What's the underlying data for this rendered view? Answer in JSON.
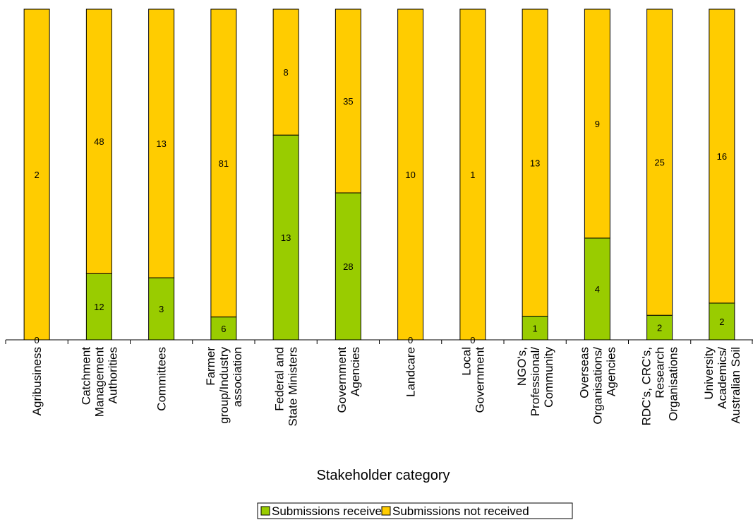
{
  "chart_data": {
    "type": "bar",
    "stacked": "percent",
    "categories": [
      [
        "Agribusiness"
      ],
      [
        "Catchment",
        "Management",
        "Authorities"
      ],
      [
        "Committees"
      ],
      [
        "Farmer",
        "group/Industry",
        "association"
      ],
      [
        "Federal and",
        "State Ministers"
      ],
      [
        "Government",
        "Agencies"
      ],
      [
        "Landcare"
      ],
      [
        "Local",
        "Government"
      ],
      [
        "NGO's,",
        "Professional/",
        "Community"
      ],
      [
        "Overseas",
        "Organisations/",
        "Agencies"
      ],
      [
        "RDC's, CRC's,",
        "Research",
        "Organisations"
      ],
      [
        "University",
        "Academics/",
        "Australian Soil"
      ]
    ],
    "series": [
      {
        "name": "Submissions received",
        "color": "#99cc00",
        "values": [
          0,
          12,
          3,
          6,
          13,
          28,
          0,
          0,
          1,
          4,
          2,
          2
        ]
      },
      {
        "name": "Submissions not received",
        "color": "#ffcc00",
        "values": [
          2,
          48,
          13,
          81,
          8,
          35,
          10,
          1,
          13,
          9,
          25,
          16
        ]
      }
    ],
    "xlabel": "Stakeholder category",
    "ylabel": "",
    "legend": "bottom",
    "grid": false
  }
}
